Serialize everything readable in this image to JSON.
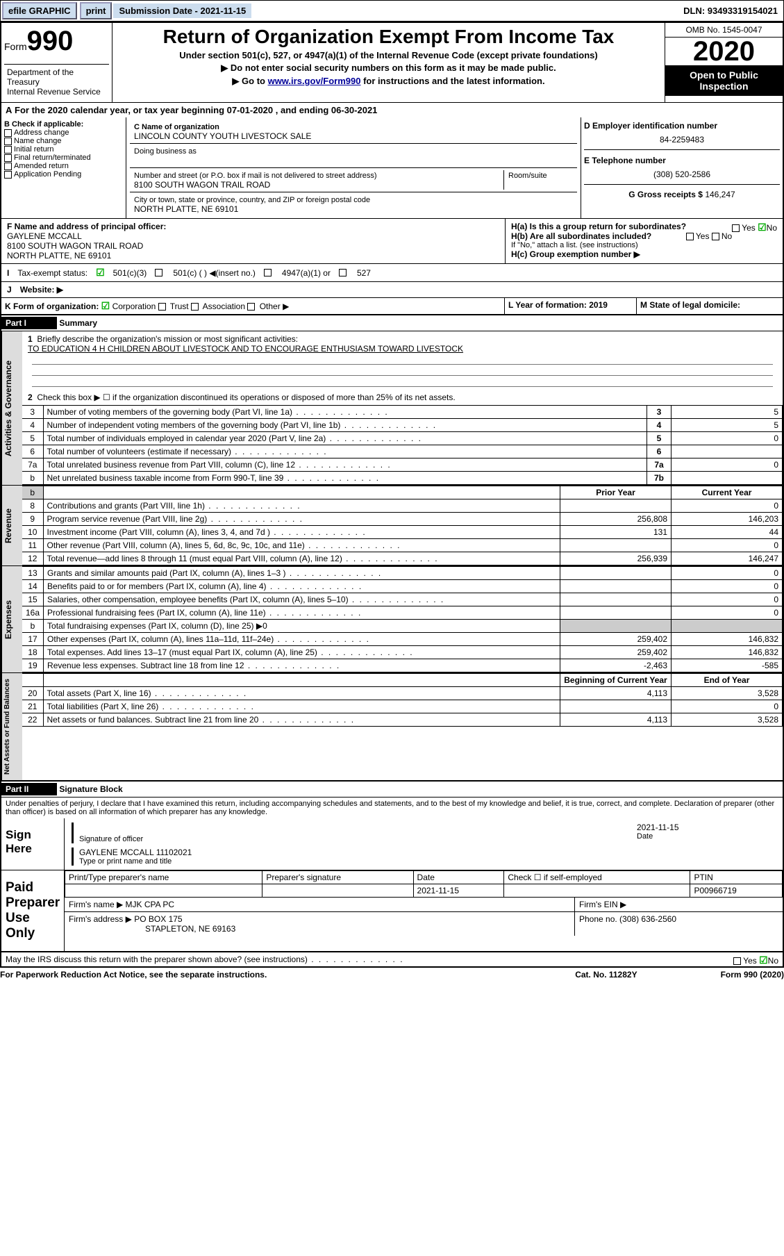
{
  "topbar": {
    "efile": "efile GRAPHIC",
    "print": "print",
    "subdate_lbl": "Submission Date - 2021-11-15",
    "dln": "DLN: 93493319154021"
  },
  "header": {
    "form": "Form",
    "formno": "990",
    "dept": "Department of the Treasury\nInternal Revenue Service",
    "title": "Return of Organization Exempt From Income Tax",
    "under": "Under section 501(c), 527, or 4947(a)(1) of the Internal Revenue Code (except private foundations)",
    "nosocial": "▶ Do not enter social security numbers on this form as it may be made public.",
    "goto_pre": "▶ Go to ",
    "goto_link": "www.irs.gov/Form990",
    "goto_post": " for instructions and the latest information.",
    "omb": "OMB No. 1545-0047",
    "year": "2020",
    "public": "Open to Public Inspection"
  },
  "A": {
    "taxyear": "For the 2020 calendar year, or tax year beginning 07-01-2020   , and ending 06-30-2021"
  },
  "B": {
    "lbl": "B Check if applicable:",
    "items": [
      "Address change",
      "Name change",
      "Initial return",
      "Final return/terminated",
      "Amended return",
      "Application Pending"
    ]
  },
  "C": {
    "name_lbl": "C Name of organization",
    "name": "LINCOLN COUNTY YOUTH LIVESTOCK SALE",
    "dba_lbl": "Doing business as",
    "dba": "",
    "addr_lbl": "Number and street (or P.O. box if mail is not delivered to street address)",
    "room_lbl": "Room/suite",
    "addr": "8100 SOUTH WAGON TRAIL ROAD",
    "city_lbl": "City or town, state or province, country, and ZIP or foreign postal code",
    "city": "NORTH PLATTE, NE  69101"
  },
  "D": {
    "lbl": "D Employer identification number",
    "val": "84-2259483"
  },
  "E": {
    "lbl": "E Telephone number",
    "val": "(308) 520-2586"
  },
  "G": {
    "lbl": "G Gross receipts $",
    "val": "146,247"
  },
  "F": {
    "lbl": "F  Name and address of principal officer:",
    "name": "GAYLENE MCCALL",
    "addr": "8100 SOUTH WAGON TRAIL ROAD",
    "city": "NORTH PLATTE, NE  69101"
  },
  "H": {
    "a": "H(a)  Is this a group return for subordinates?",
    "b": "H(b)  Are all subordinates included?",
    "bnote": "If \"No,\" attach a list. (see instructions)",
    "c": "H(c)  Group exemption number ▶",
    "yes": "Yes",
    "no": "No"
  },
  "I": {
    "lbl": "Tax-exempt status:",
    "c3": "501(c)(3)",
    "c": "501(c) (  ) ◀(insert no.)",
    "a": "4947(a)(1) or",
    "s": "527"
  },
  "J": {
    "lbl": "Website: ▶"
  },
  "K": {
    "lbl": "K Form of organization:",
    "corp": "Corporation",
    "trust": "Trust",
    "assoc": "Association",
    "other": "Other ▶"
  },
  "L": {
    "lbl": "L Year of formation: 2019"
  },
  "M": {
    "lbl": "M State of legal domicile:"
  },
  "part1": {
    "bar": "Part I",
    "title": "Summary"
  },
  "gov": {
    "side": "Activities & Governance",
    "l1": "Briefly describe the organization's mission or most significant activities:",
    "mission": "TO EDUCATION 4 H CHILDREN ABOUT LIVESTOCK AND TO ENCOURAGE ENTHUSIASM TOWARD LIVESTOCK",
    "l2": "Check this box ▶ ☐  if the organization discontinued its operations or disposed of more than 25% of its net assets.",
    "rows": [
      {
        "n": "3",
        "t": "Number of voting members of the governing body (Part VI, line 1a)",
        "b": "3",
        "v": "5"
      },
      {
        "n": "4",
        "t": "Number of independent voting members of the governing body (Part VI, line 1b)",
        "b": "4",
        "v": "5"
      },
      {
        "n": "5",
        "t": "Total number of individuals employed in calendar year 2020 (Part V, line 2a)",
        "b": "5",
        "v": "0"
      },
      {
        "n": "6",
        "t": "Total number of volunteers (estimate if necessary)",
        "b": "6",
        "v": ""
      },
      {
        "n": "7a",
        "t": "Total unrelated business revenue from Part VIII, column (C), line 12",
        "b": "7a",
        "v": "0"
      },
      {
        "n": "b",
        "t": "Net unrelated business taxable income from Form 990-T, line 39",
        "b": "7b",
        "v": ""
      }
    ]
  },
  "rev": {
    "side": "Revenue",
    "h1": "Prior Year",
    "h2": "Current Year",
    "rows": [
      {
        "n": "8",
        "t": "Contributions and grants (Part VIII, line 1h)",
        "p": "",
        "c": "0"
      },
      {
        "n": "9",
        "t": "Program service revenue (Part VIII, line 2g)",
        "p": "256,808",
        "c": "146,203"
      },
      {
        "n": "10",
        "t": "Investment income (Part VIII, column (A), lines 3, 4, and 7d )",
        "p": "131",
        "c": "44"
      },
      {
        "n": "11",
        "t": "Other revenue (Part VIII, column (A), lines 5, 6d, 8c, 9c, 10c, and 11e)",
        "p": "",
        "c": "0"
      },
      {
        "n": "12",
        "t": "Total revenue—add lines 8 through 11 (must equal Part VIII, column (A), line 12)",
        "p": "256,939",
        "c": "146,247"
      }
    ]
  },
  "exp": {
    "side": "Expenses",
    "rows": [
      {
        "n": "13",
        "t": "Grants and similar amounts paid (Part IX, column (A), lines 1–3 )",
        "p": "",
        "c": "0"
      },
      {
        "n": "14",
        "t": "Benefits paid to or for members (Part IX, column (A), line 4)",
        "p": "",
        "c": "0"
      },
      {
        "n": "15",
        "t": "Salaries, other compensation, employee benefits (Part IX, column (A), lines 5–10)",
        "p": "",
        "c": "0"
      },
      {
        "n": "16a",
        "t": "Professional fundraising fees (Part IX, column (A), line 11e)",
        "p": "",
        "c": "0"
      },
      {
        "n": "b",
        "t": "Total fundraising expenses (Part IX, column (D), line 25) ▶0",
        "p": "shade",
        "c": "shade"
      },
      {
        "n": "17",
        "t": "Other expenses (Part IX, column (A), lines 11a–11d, 11f–24e)",
        "p": "259,402",
        "c": "146,832"
      },
      {
        "n": "18",
        "t": "Total expenses. Add lines 13–17 (must equal Part IX, column (A), line 25)",
        "p": "259,402",
        "c": "146,832"
      },
      {
        "n": "19",
        "t": "Revenue less expenses. Subtract line 18 from line 12",
        "p": "-2,463",
        "c": "-585"
      }
    ]
  },
  "net": {
    "side": "Net Assets or Fund Balances",
    "h1": "Beginning of Current Year",
    "h2": "End of Year",
    "rows": [
      {
        "n": "20",
        "t": "Total assets (Part X, line 16)",
        "p": "4,113",
        "c": "3,528"
      },
      {
        "n": "21",
        "t": "Total liabilities (Part X, line 26)",
        "p": "",
        "c": "0"
      },
      {
        "n": "22",
        "t": "Net assets or fund balances. Subtract line 21 from line 20",
        "p": "4,113",
        "c": "3,528"
      }
    ]
  },
  "part2": {
    "bar": "Part II",
    "title": "Signature Block",
    "decl": "Under penalties of perjury, I declare that I have examined this return, including accompanying schedules and statements, and to the best of my knowledge and belief, it is true, correct, and complete. Declaration of preparer (other than officer) is based on all information of which preparer has any knowledge."
  },
  "sign": {
    "here": "Sign Here",
    "sig": "Signature of officer",
    "date": "Date",
    "dateval": "2021-11-15",
    "name": "GAYLENE MCCALL 11102021",
    "type": "Type or print name and title"
  },
  "paid": {
    "lbl": "Paid Preparer Use Only",
    "h": [
      "Print/Type preparer's name",
      "Preparer's signature",
      "Date",
      "Check ☐  if self-employed",
      "PTIN"
    ],
    "dateval": "2021-11-15",
    "ptin": "P00966719",
    "firm_lbl": "Firm's name    ▶",
    "firm": "MJK CPA PC",
    "ein": "Firm's EIN ▶",
    "addr_lbl": "Firm's address ▶",
    "addr1": "PO BOX 175",
    "addr2": "STAPLETON, NE  69163",
    "phone": "Phone no. (308) 636-2560",
    "discuss": "May the IRS discuss this return with the preparer shown above? (see instructions)"
  },
  "footer": {
    "l": "For Paperwork Reduction Act Notice, see the separate instructions.",
    "m": "Cat. No. 11282Y",
    "r": "Form 990 (2020)"
  }
}
